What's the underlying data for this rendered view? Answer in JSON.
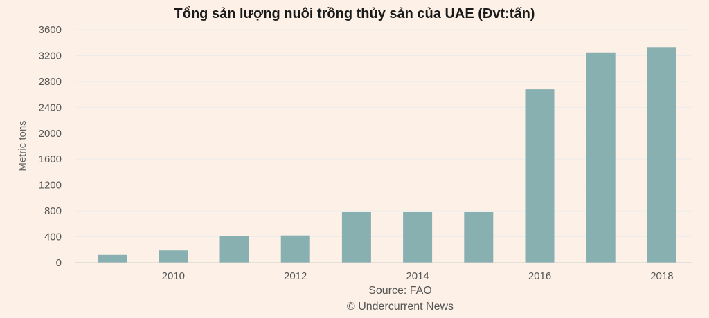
{
  "chart_data": {
    "type": "bar",
    "title": "Tổng sản lượng nuôi trồng thủy sản của UAE (Đvt:tấn)",
    "xlabel": "",
    "ylabel": "Metric tons",
    "categories": [
      "2009",
      "2010",
      "2011",
      "2012",
      "2013",
      "2014",
      "2015",
      "2016",
      "2017",
      "2018"
    ],
    "x_tick_labels": [
      "2010",
      "2012",
      "2014",
      "2016",
      "2018"
    ],
    "values": [
      120,
      190,
      410,
      420,
      780,
      780,
      790,
      2680,
      3250,
      3330
    ],
    "ylim": [
      0,
      3600
    ],
    "yticks": [
      0,
      400,
      800,
      1200,
      1600,
      2000,
      2400,
      2800,
      3200,
      3600
    ],
    "grid": true,
    "bar_color": "#88b0b0"
  },
  "source_text": "Source: FAO",
  "credit_text": "© Undercurrent News"
}
